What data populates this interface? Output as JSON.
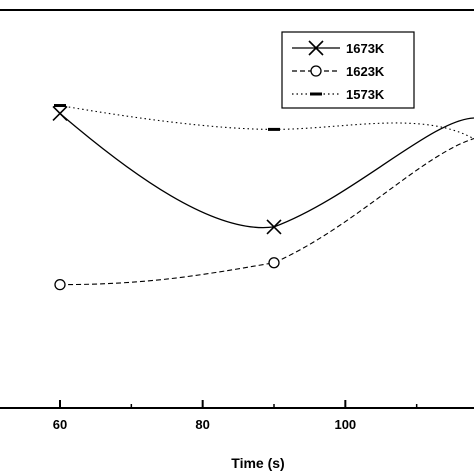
{
  "chart_data": {
    "type": "line",
    "xlabel": "Time (s)",
    "ylabel": "",
    "xlim": [
      60,
      120
    ],
    "x_ticks": [
      "60",
      "80",
      "100"
    ],
    "x_tick_values": [
      60,
      80,
      100
    ],
    "grid": false,
    "legend_position": "top-right",
    "series": [
      {
        "name": "1673K",
        "marker": "x",
        "line_style": "solid",
        "color": "#000000",
        "points": [
          [
            60,
            0.74
          ],
          [
            90,
            0.455
          ]
        ]
      },
      {
        "name": "1623K",
        "marker": "circle",
        "line_style": "dashed",
        "color": "#000000",
        "points": [
          [
            60,
            0.31
          ],
          [
            90,
            0.365
          ]
        ]
      },
      {
        "name": "1573K",
        "marker": "dash",
        "line_style": "dotted",
        "color": "#000000",
        "points": [
          [
            60,
            0.76
          ],
          [
            90,
            0.7
          ]
        ]
      }
    ]
  }
}
